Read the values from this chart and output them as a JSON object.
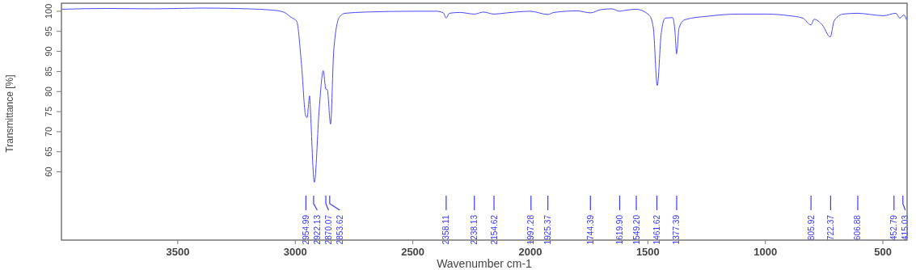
{
  "chart_data": {
    "type": "line",
    "xlabel": "Wavenumber cm-1",
    "ylabel": "Transmittance [%]",
    "xlim": [
      3995,
      397
    ],
    "ylim": [
      43,
      102
    ],
    "xticks": [
      3500,
      3000,
      2500,
      2000,
      1500,
      1000,
      500
    ],
    "yticks": [
      60,
      65,
      70,
      75,
      80,
      85,
      90,
      95,
      100
    ],
    "series": [
      {
        "color": "#4a4aff",
        "x": [
          3995,
          3800,
          3600,
          3400,
          3200,
          3100,
          3050,
          3018,
          2994,
          2974,
          2956,
          2950,
          2939,
          2936,
          2919,
          2898,
          2881,
          2870,
          2864,
          2850,
          2836,
          2812,
          2788,
          2700,
          2500,
          2400,
          2370,
          2358,
          2345,
          2300,
          2238.13,
          2200,
          2154.62,
          2100,
          2000,
          1925.37,
          1900,
          1800,
          1744.39,
          1700,
          1653,
          1619.9,
          1600,
          1550,
          1494,
          1477,
          1460,
          1443,
          1426,
          1395,
          1384,
          1378,
          1367,
          1343,
          1240,
          1116,
          999,
          900,
          841,
          806,
          793,
          758,
          724,
          707,
          669,
          610,
          497,
          445,
          428,
          411,
          400
        ],
        "values": [
          100.5,
          100.7,
          100.6,
          100.8,
          100.6,
          100.3,
          99.8,
          98.5,
          97.5,
          87,
          74,
          73.5,
          78.9,
          75.8,
          57.4,
          75.9,
          85.2,
          80.6,
          80.5,
          71.9,
          90.6,
          98.6,
          99.5,
          99.8,
          100,
          100,
          99.6,
          98.3,
          99.5,
          99.7,
          99.3,
          99.8,
          99.3,
          99.6,
          100,
          99.2,
          99.7,
          100.1,
          99.6,
          100.4,
          100.6,
          100,
          100.2,
          100.5,
          99,
          96,
          81.5,
          94.6,
          98.3,
          98.4,
          94.6,
          89.4,
          95.9,
          97.9,
          98.8,
          99.3,
          99.3,
          98.9,
          98.3,
          96.6,
          98,
          96.6,
          93.6,
          97.7,
          99.3,
          99.5,
          98.9,
          99.5,
          98.3,
          99.1,
          97.9
        ]
      }
    ],
    "annotations": [
      {
        "text": "2954.99",
        "x": 2954.99
      },
      {
        "text": "2922.13",
        "x": 2922.13
      },
      {
        "text": "2870.07",
        "x": 2870.07
      },
      {
        "text": "2853.62",
        "x": 2853.62
      },
      {
        "text": "2358.11",
        "x": 2358.11
      },
      {
        "text": "2238.13",
        "x": 2238.13
      },
      {
        "text": "2154.62",
        "x": 2154.62
      },
      {
        "text": "1997.28",
        "x": 1997.28
      },
      {
        "text": "1925.37",
        "x": 1925.37
      },
      {
        "text": "1744.39",
        "x": 1744.39
      },
      {
        "text": "1619.90",
        "x": 1619.9
      },
      {
        "text": "1549.20",
        "x": 1549.2
      },
      {
        "text": "1461.62",
        "x": 1461.62
      },
      {
        "text": "1377.39",
        "x": 1377.39
      },
      {
        "text": "805.92",
        "x": 805.92
      },
      {
        "text": "722.37",
        "x": 722.37
      },
      {
        "text": "606.88",
        "x": 606.88
      },
      {
        "text": "452.79",
        "x": 452.79
      },
      {
        "text": "415.03",
        "x": 415.03
      }
    ]
  }
}
